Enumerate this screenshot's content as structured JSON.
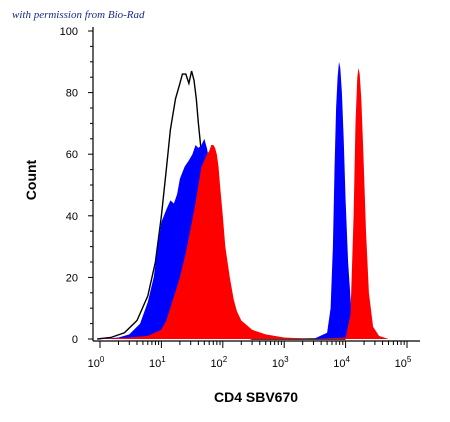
{
  "watermark": "with permission from Bio-Rad",
  "chart_data": {
    "type": "area",
    "title": "",
    "xlabel": "CD4 SBV670",
    "ylabel": "Count",
    "x_scale": "log",
    "xlim": [
      1,
      100000
    ],
    "ylim": [
      0,
      100
    ],
    "y_ticks": [
      0,
      20,
      40,
      60,
      80,
      100
    ],
    "x_ticks": [
      {
        "value": 1,
        "base": "10",
        "exp": "0"
      },
      {
        "value": 10,
        "base": "10",
        "exp": "1"
      },
      {
        "value": 100,
        "base": "10",
        "exp": "2"
      },
      {
        "value": 1000,
        "base": "10",
        "exp": "3"
      },
      {
        "value": 10000,
        "base": "10",
        "exp": "4"
      },
      {
        "value": 100000,
        "base": "10",
        "exp": "5"
      }
    ],
    "grid": false,
    "series": [
      {
        "style": "outline",
        "color": "#000000",
        "points": [
          [
            0.9,
            0
          ],
          [
            1.5,
            0.5
          ],
          [
            2.5,
            2
          ],
          [
            4,
            6
          ],
          [
            6,
            14
          ],
          [
            8,
            25
          ],
          [
            10,
            40
          ],
          [
            12,
            55
          ],
          [
            14,
            68
          ],
          [
            17,
            78
          ],
          [
            20,
            83
          ],
          [
            22,
            86
          ],
          [
            25,
            86
          ],
          [
            28,
            83
          ],
          [
            31,
            87
          ],
          [
            34,
            84
          ],
          [
            37,
            78
          ],
          [
            40,
            70
          ],
          [
            45,
            60
          ],
          [
            50,
            50
          ],
          [
            60,
            38
          ],
          [
            70,
            25
          ],
          [
            80,
            17
          ],
          [
            100,
            10
          ],
          [
            130,
            5
          ],
          [
            160,
            2
          ],
          [
            200,
            1
          ],
          [
            300,
            0
          ],
          [
            10000,
            0
          ]
        ]
      },
      {
        "style": "filled",
        "color": "#0000ff",
        "points": [
          [
            1,
            0
          ],
          [
            2,
            0.5
          ],
          [
            3,
            1.5
          ],
          [
            4.5,
            5
          ],
          [
            6,
            12
          ],
          [
            7.5,
            20
          ],
          [
            9,
            32
          ],
          [
            10,
            38
          ],
          [
            12,
            42
          ],
          [
            14,
            45
          ],
          [
            16,
            44
          ],
          [
            18,
            47
          ],
          [
            20,
            52
          ],
          [
            24,
            56
          ],
          [
            28,
            58
          ],
          [
            32,
            60
          ],
          [
            36,
            63
          ],
          [
            40,
            62
          ],
          [
            45,
            63
          ],
          [
            50,
            65
          ],
          [
            55,
            62
          ],
          [
            60,
            58
          ],
          [
            70,
            48
          ],
          [
            80,
            38
          ],
          [
            90,
            28
          ],
          [
            100,
            20
          ],
          [
            130,
            10
          ],
          [
            200,
            3
          ],
          [
            300,
            1
          ],
          [
            500,
            0
          ],
          [
            3000,
            0
          ],
          [
            5000,
            2
          ],
          [
            5700,
            10
          ],
          [
            6200,
            30
          ],
          [
            6600,
            55
          ],
          [
            7000,
            75
          ],
          [
            7400,
            85
          ],
          [
            7800,
            90
          ],
          [
            8200,
            88
          ],
          [
            8700,
            80
          ],
          [
            9300,
            65
          ],
          [
            10000,
            45
          ],
          [
            11000,
            25
          ],
          [
            12500,
            8
          ],
          [
            15000,
            2
          ],
          [
            20000,
            0
          ]
        ]
      },
      {
        "style": "filled",
        "color": "#ff0000",
        "points": [
          [
            1,
            0
          ],
          [
            3,
            0.5
          ],
          [
            6,
            1
          ],
          [
            10,
            3
          ],
          [
            12,
            6
          ],
          [
            15,
            12
          ],
          [
            20,
            20
          ],
          [
            25,
            28
          ],
          [
            30,
            36
          ],
          [
            35,
            43
          ],
          [
            40,
            50
          ],
          [
            45,
            56
          ],
          [
            50,
            58
          ],
          [
            55,
            60
          ],
          [
            60,
            61
          ],
          [
            65,
            63
          ],
          [
            70,
            63
          ],
          [
            75,
            62
          ],
          [
            80,
            60
          ],
          [
            85,
            56
          ],
          [
            90,
            50
          ],
          [
            100,
            40
          ],
          [
            110,
            30
          ],
          [
            130,
            20
          ],
          [
            150,
            13
          ],
          [
            170,
            9
          ],
          [
            200,
            6
          ],
          [
            300,
            3
          ],
          [
            500,
            1.5
          ],
          [
            1000,
            0.5
          ],
          [
            3000,
            0
          ],
          [
            10000,
            0.5
          ],
          [
            12000,
            8
          ],
          [
            13500,
            40
          ],
          [
            14500,
            70
          ],
          [
            15500,
            85
          ],
          [
            16200,
            88
          ],
          [
            17000,
            86
          ],
          [
            18000,
            78
          ],
          [
            19500,
            60
          ],
          [
            21500,
            35
          ],
          [
            24000,
            15
          ],
          [
            28000,
            4
          ],
          [
            35000,
            1
          ],
          [
            50000,
            0
          ],
          [
            100000,
            0
          ]
        ]
      }
    ]
  }
}
